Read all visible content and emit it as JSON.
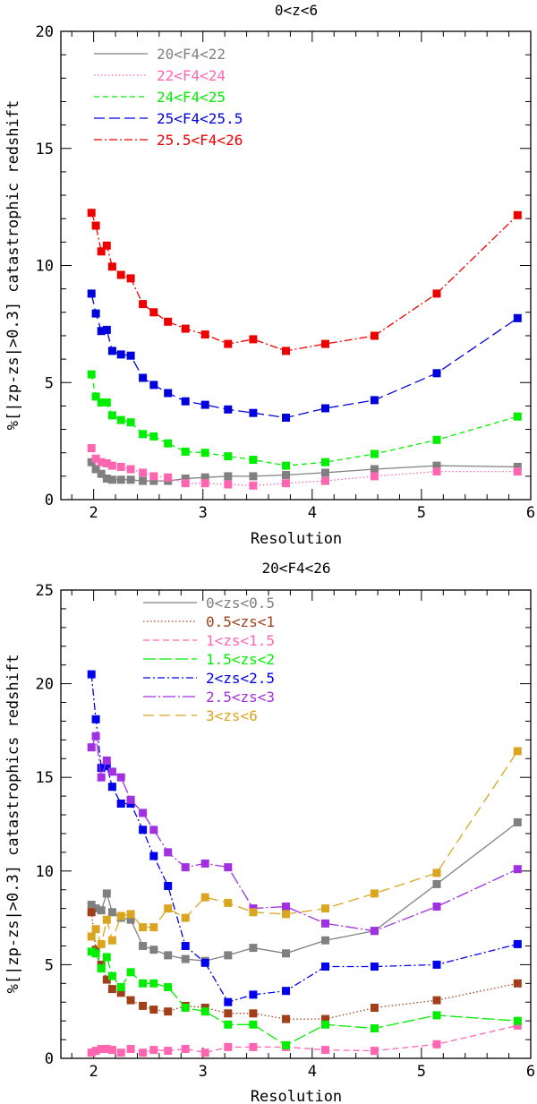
{
  "chart_data": [
    {
      "type": "line",
      "title": "0<z<6",
      "xlabel": "Resolution",
      "ylabel": "%[|zp-zs|>0.3] catastrophic redshift",
      "xlim": [
        1.7,
        6.0
      ],
      "ylim": [
        0,
        20
      ],
      "xticks": [
        2,
        3,
        4,
        5,
        6
      ],
      "yticks": [
        0,
        5,
        10,
        15,
        20
      ],
      "series": [
        {
          "name": "20<F4<22",
          "color": "#808080",
          "dash": "",
          "x": [
            1.98,
            2.02,
            2.07,
            2.12,
            2.17,
            2.25,
            2.34,
            2.45,
            2.55,
            2.68,
            2.84,
            3.02,
            3.23,
            3.46,
            3.76,
            4.12,
            4.57,
            5.14,
            5.88
          ],
          "y": [
            1.6,
            1.3,
            1.1,
            0.9,
            0.85,
            0.85,
            0.85,
            0.8,
            0.8,
            0.8,
            0.9,
            0.95,
            1.0,
            1.0,
            1.05,
            1.15,
            1.3,
            1.45,
            1.4
          ]
        },
        {
          "name": "22<F4<24",
          "color": "#ff66b2",
          "dash": "1.5,2.5",
          "x": [
            1.98,
            2.02,
            2.07,
            2.12,
            2.17,
            2.25,
            2.34,
            2.45,
            2.55,
            2.68,
            2.84,
            3.02,
            3.23,
            3.46,
            3.76,
            4.12,
            4.57,
            5.14,
            5.88
          ],
          "y": [
            2.2,
            1.75,
            1.6,
            1.55,
            1.45,
            1.4,
            1.3,
            1.15,
            1.0,
            0.95,
            0.7,
            0.7,
            0.65,
            0.6,
            0.7,
            0.8,
            1.0,
            1.2,
            1.2
          ]
        },
        {
          "name": "24<F4<25",
          "color": "#00ee00",
          "dash": "6,4",
          "x": [
            1.98,
            2.02,
            2.07,
            2.12,
            2.17,
            2.25,
            2.34,
            2.45,
            2.55,
            2.68,
            2.84,
            3.02,
            3.23,
            3.46,
            3.76,
            4.12,
            4.57,
            5.14,
            5.88
          ],
          "y": [
            5.35,
            4.4,
            4.15,
            4.15,
            3.6,
            3.4,
            3.3,
            2.8,
            2.7,
            2.4,
            2.05,
            2.0,
            1.85,
            1.7,
            1.45,
            1.6,
            1.95,
            2.55,
            3.55
          ]
        },
        {
          "name": "25<F4<25.5",
          "color": "#0000dd",
          "dash": "12,5",
          "x": [
            1.98,
            2.02,
            2.07,
            2.12,
            2.17,
            2.25,
            2.34,
            2.45,
            2.55,
            2.68,
            2.84,
            3.02,
            3.23,
            3.46,
            3.76,
            4.12,
            4.57,
            5.14,
            5.88
          ],
          "y": [
            8.8,
            7.95,
            7.2,
            7.25,
            6.35,
            6.2,
            6.15,
            5.2,
            4.9,
            4.55,
            4.2,
            4.05,
            3.85,
            3.7,
            3.5,
            3.9,
            4.25,
            5.4,
            7.75
          ]
        },
        {
          "name": "25.5<F4<26",
          "color": "#ee0000",
          "dash": "9,3,2,3",
          "x": [
            1.98,
            2.02,
            2.07,
            2.12,
            2.17,
            2.25,
            2.34,
            2.45,
            2.55,
            2.68,
            2.84,
            3.02,
            3.23,
            3.46,
            3.76,
            4.12,
            4.57,
            5.14,
            5.88
          ],
          "y": [
            12.25,
            11.7,
            10.6,
            10.85,
            9.95,
            9.6,
            9.45,
            8.35,
            8.0,
            7.6,
            7.3,
            7.05,
            6.65,
            6.85,
            6.35,
            6.65,
            7.0,
            8.8,
            12.15
          ]
        }
      ]
    },
    {
      "type": "line",
      "title": "20<F4<26",
      "xlabel": "Resolution",
      "ylabel": "%[|zp-zs|>0.3] catastrophics redshift",
      "xlim": [
        1.7,
        6.0
      ],
      "ylim": [
        0,
        25
      ],
      "xticks": [
        2,
        3,
        4,
        5,
        6
      ],
      "yticks": [
        0,
        5,
        10,
        15,
        20,
        25
      ],
      "series": [
        {
          "name": "0<zs<0.5",
          "color": "#808080",
          "dash": "",
          "x": [
            1.98,
            2.02,
            2.07,
            2.12,
            2.17,
            2.25,
            2.34,
            2.45,
            2.55,
            2.68,
            2.84,
            3.02,
            3.23,
            3.46,
            3.76,
            4.12,
            4.57,
            5.14,
            5.88
          ],
          "y": [
            8.2,
            8.0,
            7.9,
            8.8,
            7.8,
            7.5,
            7.4,
            6.0,
            5.8,
            5.5,
            5.3,
            5.2,
            5.5,
            5.9,
            5.6,
            6.3,
            6.8,
            9.3,
            12.6
          ]
        },
        {
          "name": "0.5<zs<1",
          "color": "#a0401a",
          "dash": "1.5,2.5",
          "x": [
            1.98,
            2.02,
            2.07,
            2.12,
            2.17,
            2.25,
            2.34,
            2.45,
            2.55,
            2.68,
            2.84,
            3.02,
            3.23,
            3.46,
            3.76,
            4.12,
            4.57,
            5.14,
            5.88
          ],
          "y": [
            7.8,
            5.8,
            5.0,
            4.2,
            3.7,
            3.5,
            3.1,
            2.8,
            2.6,
            2.5,
            2.8,
            2.7,
            2.4,
            2.4,
            2.1,
            2.1,
            2.7,
            3.1,
            4.0
          ]
        },
        {
          "name": "1<zs<1.5",
          "color": "#ff66b2",
          "dash": "7,4",
          "x": [
            1.98,
            2.02,
            2.07,
            2.12,
            2.17,
            2.25,
            2.34,
            2.45,
            2.55,
            2.68,
            2.84,
            3.02,
            3.23,
            3.46,
            3.76,
            4.12,
            4.57,
            5.14,
            5.88
          ],
          "y": [
            0.3,
            0.4,
            0.5,
            0.5,
            0.45,
            0.3,
            0.5,
            0.3,
            0.45,
            0.4,
            0.5,
            0.3,
            0.6,
            0.6,
            0.6,
            0.45,
            0.4,
            0.75,
            1.75
          ]
        },
        {
          "name": "1.5<zs<2",
          "color": "#00ee00",
          "dash": "14,4",
          "x": [
            1.98,
            2.02,
            2.07,
            2.12,
            2.17,
            2.25,
            2.34,
            2.45,
            2.55,
            2.68,
            2.84,
            3.02,
            3.23,
            3.46,
            3.76,
            4.12,
            4.57,
            5.14,
            5.88
          ],
          "y": [
            5.7,
            5.6,
            4.8,
            5.4,
            4.4,
            3.8,
            4.6,
            4.0,
            4.0,
            3.8,
            2.7,
            2.5,
            1.8,
            1.8,
            0.7,
            1.8,
            1.6,
            2.3,
            2.0
          ]
        },
        {
          "name": "2<zs<2.5",
          "color": "#0000ee",
          "dash": "8,3,2,3",
          "x": [
            1.98,
            2.02,
            2.07,
            2.12,
            2.17,
            2.25,
            2.34,
            2.45,
            2.55,
            2.68,
            2.84,
            3.02,
            3.23,
            3.46,
            3.76,
            4.12,
            4.57,
            5.14,
            5.88
          ],
          "y": [
            20.5,
            18.1,
            15.5,
            15.6,
            14.5,
            13.6,
            13.6,
            12.2,
            10.8,
            9.2,
            6.0,
            5.1,
            3.0,
            3.4,
            3.6,
            4.9,
            4.9,
            5.0,
            6.1
          ]
        },
        {
          "name": "2.5<zs<3",
          "color": "#a030e0",
          "dash": "14,3,2,3",
          "x": [
            1.98,
            2.02,
            2.07,
            2.12,
            2.17,
            2.25,
            2.34,
            2.45,
            2.55,
            2.68,
            2.84,
            3.02,
            3.23,
            3.46,
            3.76,
            4.12,
            4.57,
            5.14,
            5.88
          ],
          "y": [
            16.6,
            17.2,
            15.0,
            15.9,
            15.3,
            15.0,
            13.8,
            13.1,
            12.2,
            11.0,
            10.2,
            10.4,
            10.2,
            8.0,
            8.1,
            7.2,
            6.8,
            8.1,
            10.1
          ]
        },
        {
          "name": "3<zs<6",
          "color": "#daa520",
          "dash": "12,6",
          "x": [
            1.98,
            2.02,
            2.07,
            2.12,
            2.17,
            2.25,
            2.34,
            2.45,
            2.55,
            2.68,
            2.84,
            3.02,
            3.23,
            3.46,
            3.76,
            4.12,
            4.57,
            5.14,
            5.88
          ],
          "y": [
            6.5,
            6.9,
            6.1,
            7.4,
            6.3,
            7.6,
            7.7,
            7.0,
            7.0,
            8.0,
            7.5,
            8.6,
            8.3,
            7.8,
            7.7,
            8.0,
            8.8,
            9.9,
            16.4
          ]
        }
      ]
    }
  ]
}
